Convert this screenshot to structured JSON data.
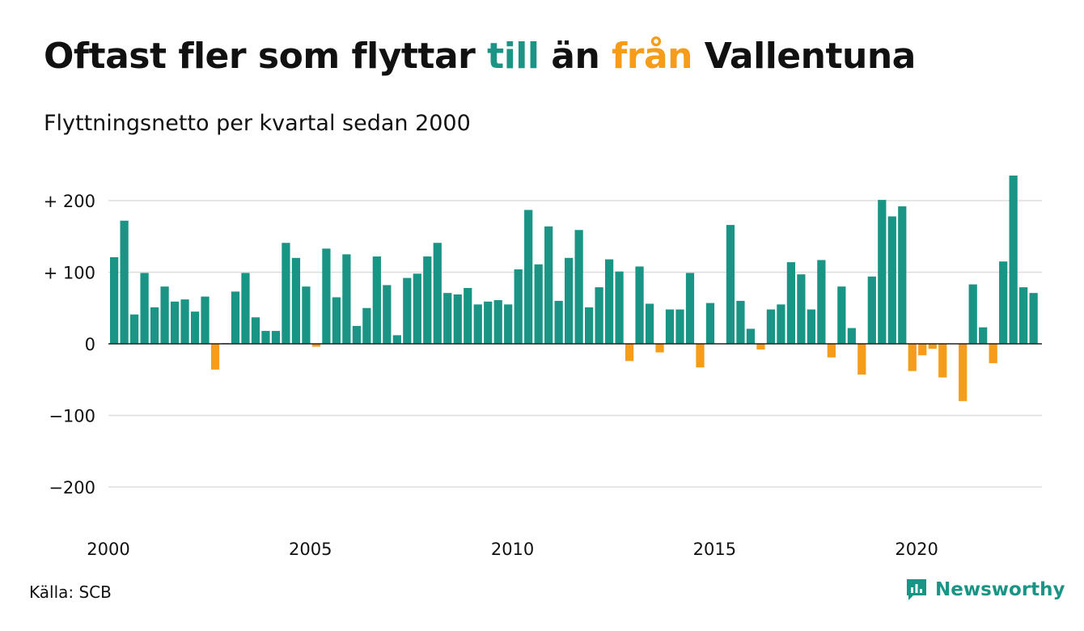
{
  "title": {
    "part1": "Oftast fler som flyttar ",
    "part2": "till",
    "part3": " än ",
    "part4": "från",
    "part5": " Vallentuna"
  },
  "subtitle": "Flyttningsnetto per kvartal sedan 2000",
  "source": "Källa: SCB",
  "brand": {
    "name": "Newsworthy",
    "icon": "newsworthy-logo-icon"
  },
  "colors": {
    "positive": "#1a9585",
    "negative": "#f59c1a",
    "grid": "#dddddd",
    "text": "#111111"
  },
  "chart_data": {
    "type": "bar",
    "title": "Oftast fler som flyttar till än från Vallentuna",
    "subtitle": "Flyttningsnetto per kvartal sedan 2000",
    "xlabel": "",
    "ylabel": "",
    "ylim": [
      -250,
      250
    ],
    "y_ticks": [
      {
        "value": 200,
        "label": "+ 200"
      },
      {
        "value": 100,
        "label": "+ 100"
      },
      {
        "value": 0,
        "label": "0"
      },
      {
        "value": -100,
        "label": "−100"
      },
      {
        "value": -200,
        "label": "−200"
      }
    ],
    "x_ticks": [
      {
        "year": 2000,
        "label": "2000"
      },
      {
        "year": 2005,
        "label": "2005"
      },
      {
        "year": 2010,
        "label": "2010"
      },
      {
        "year": 2015,
        "label": "2015"
      },
      {
        "year": 2020,
        "label": "2020"
      }
    ],
    "grid": true,
    "legend": "none",
    "categories": [
      "2000 Q1",
      "2000 Q2",
      "2000 Q3",
      "2000 Q4",
      "2001 Q1",
      "2001 Q2",
      "2001 Q3",
      "2001 Q4",
      "2002 Q1",
      "2002 Q2",
      "2002 Q3",
      "2002 Q4",
      "2003 Q1",
      "2003 Q2",
      "2003 Q3",
      "2003 Q4",
      "2004 Q1",
      "2004 Q2",
      "2004 Q3",
      "2004 Q4",
      "2005 Q1",
      "2005 Q2",
      "2005 Q3",
      "2005 Q4",
      "2006 Q1",
      "2006 Q2",
      "2006 Q3",
      "2006 Q4",
      "2007 Q1",
      "2007 Q2",
      "2007 Q3",
      "2007 Q4",
      "2008 Q1",
      "2008 Q2",
      "2008 Q3",
      "2008 Q4",
      "2009 Q1",
      "2009 Q2",
      "2009 Q3",
      "2009 Q4",
      "2010 Q1",
      "2010 Q2",
      "2010 Q3",
      "2010 Q4",
      "2011 Q1",
      "2011 Q2",
      "2011 Q3",
      "2011 Q4",
      "2012 Q1",
      "2012 Q2",
      "2012 Q3",
      "2012 Q4",
      "2013 Q1",
      "2013 Q2",
      "2013 Q3",
      "2013 Q4",
      "2014 Q1",
      "2014 Q2",
      "2014 Q3",
      "2014 Q4",
      "2015 Q1",
      "2015 Q2",
      "2015 Q3",
      "2015 Q4",
      "2016 Q1",
      "2016 Q2",
      "2016 Q3",
      "2016 Q4",
      "2017 Q1",
      "2017 Q2",
      "2017 Q3",
      "2017 Q4",
      "2018 Q1",
      "2018 Q2",
      "2018 Q3",
      "2018 Q4",
      "2019 Q1",
      "2019 Q2",
      "2019 Q3",
      "2019 Q4",
      "2020 Q1",
      "2020 Q2",
      "2020 Q3",
      "2020 Q4",
      "2021 Q1",
      "2021 Q2",
      "2021 Q3",
      "2021 Q4",
      "2022 Q1",
      "2022 Q2",
      "2022 Q3",
      "2022 Q4",
      "2023 Q1"
    ],
    "values": [
      121,
      172,
      41,
      99,
      51,
      80,
      59,
      62,
      45,
      66,
      -36,
      1,
      73,
      99,
      37,
      18,
      18,
      141,
      120,
      80,
      -4,
      133,
      65,
      125,
      25,
      50,
      122,
      82,
      12,
      92,
      98,
      122,
      141,
      71,
      69,
      78,
      55,
      59,
      61,
      55,
      104,
      187,
      111,
      164,
      60,
      120,
      159,
      51,
      79,
      118,
      101,
      -24,
      108,
      56,
      -12,
      48,
      48,
      99,
      -33,
      57,
      0,
      166,
      60,
      21,
      -8,
      48,
      55,
      114,
      97,
      48,
      117,
      -19,
      80,
      22,
      -43,
      94,
      201,
      178,
      192,
      -38,
      -16,
      -7,
      -47,
      0,
      -80,
      83,
      23,
      -27,
      115,
      235,
      79,
      71,
      0
    ]
  }
}
